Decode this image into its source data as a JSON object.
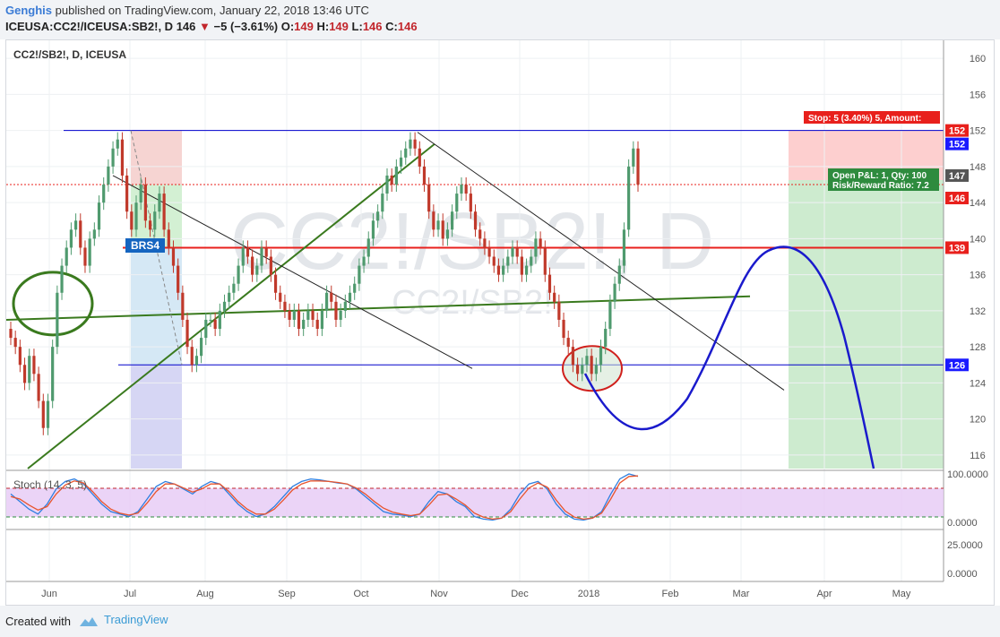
{
  "header": {
    "author": "Genghis",
    "published_text": "published on TradingView.com, January 22, 2018 13:46 UTC",
    "symbol": "ICEUSA:CC2!/ICEUSA:SB2!, D",
    "last": "146",
    "change_arrow": "▼",
    "change": "−5 (−3.61%)",
    "o_label": "O:",
    "o": "149",
    "h_label": "H:",
    "h": "149",
    "l_label": "L:",
    "l": "146",
    "c_label": "C:",
    "c": "146"
  },
  "chart": {
    "legend": "CC2!/SB2!, D, ICEUSA",
    "watermark_main": "CC2!/SB2!, D",
    "watermark_sub": "CC2!/SB2!",
    "stoch_label": "Stoch (14, 3, 5)",
    "brs_label": "BRS4",
    "stop_label": "Stop: 5 (3.40%) 5, Amount:",
    "pnl_line1": "Open P&L: 1, Qty: 100",
    "pnl_line2": "Risk/Reward Ratio: 7.2"
  },
  "footer": {
    "created_with": "Created with",
    "brand": "TradingView"
  },
  "colors": {
    "up": "#4f9a6e",
    "down": "#c0392b",
    "blue": "#1a1aff",
    "darkblue": "#0000cc",
    "green_line": "#3a7a1e",
    "red_line": "#e8201c"
  },
  "chart_data": {
    "type": "candlestick",
    "title": "CC2!/SB2!, D, ICEUSA",
    "x_ticks": [
      "Jun",
      "Jul",
      "Aug",
      "Sep",
      "Oct",
      "Nov",
      "Dec",
      "2018",
      "Feb",
      "Mar",
      "Apr",
      "May"
    ],
    "y_ticks": [
      116,
      120,
      124,
      128,
      132,
      136,
      140,
      144,
      148,
      152,
      156,
      160
    ],
    "ylim": [
      114.5,
      162
    ],
    "price_labels": [
      {
        "value": 152,
        "text": "152",
        "color": "#e8201c"
      },
      {
        "value": 152,
        "text": "152",
        "color": "#1a1aff",
        "offset": 1
      },
      {
        "value": 147,
        "text": "147",
        "color": "#555555"
      },
      {
        "value": 146,
        "text": "146",
        "color": "#e8201c",
        "offset": 1
      },
      {
        "value": 139,
        "text": "139",
        "color": "#e8201c"
      },
      {
        "value": 126,
        "text": "126",
        "color": "#1a1aff"
      }
    ],
    "horizontal_levels": {
      "top": 152,
      "bottom": 126,
      "red": 139,
      "last": 146
    },
    "series_close": [
      129,
      128,
      126,
      124,
      127,
      125,
      122,
      119,
      122,
      128,
      134,
      137,
      139,
      141,
      142,
      139,
      137,
      140,
      141,
      144,
      146,
      148,
      150,
      151,
      147,
      143,
      141,
      144,
      146,
      142,
      141,
      143,
      145,
      141,
      139,
      137,
      134,
      131,
      128,
      126,
      127,
      129,
      131,
      131,
      130,
      132,
      133,
      134,
      135,
      137,
      139,
      138,
      136,
      137,
      139,
      138,
      136,
      134,
      133,
      132,
      131,
      132,
      130,
      131,
      132,
      131,
      130,
      132,
      134,
      133,
      131,
      132,
      133,
      134,
      135,
      137,
      138,
      140,
      142,
      143,
      145,
      147,
      146,
      148,
      149,
      150,
      151,
      150,
      148,
      146,
      143,
      141,
      142,
      140,
      141,
      143,
      145,
      146,
      145,
      143,
      141,
      140,
      139,
      138,
      137,
      136,
      137,
      138,
      139,
      138,
      136,
      137,
      138,
      140,
      139,
      136,
      134,
      133,
      131,
      129,
      128,
      126,
      125,
      126,
      127,
      125,
      126,
      128,
      130,
      133,
      135,
      137,
      141,
      148,
      150,
      146
    ],
    "stoch_ticks": [
      "100.0000",
      "0.0000",
      "25.0000",
      "0.0000"
    ],
    "stoch_k": [
      60,
      45,
      30,
      20,
      40,
      70,
      85,
      90,
      80,
      60,
      40,
      25,
      20,
      15,
      25,
      50,
      75,
      85,
      80,
      70,
      60,
      75,
      85,
      80,
      60,
      40,
      25,
      15,
      20,
      35,
      55,
      75,
      85,
      90,
      88,
      85,
      82,
      80,
      70,
      55,
      40,
      25,
      20,
      18,
      15,
      20,
      45,
      65,
      60,
      45,
      35,
      15,
      10,
      8,
      12,
      30,
      60,
      80,
      85,
      70,
      40,
      20,
      10,
      8,
      12,
      25,
      60,
      90,
      100,
      95
    ],
    "stoch_d": [
      55,
      50,
      38,
      28,
      35,
      60,
      78,
      86,
      82,
      65,
      45,
      30,
      22,
      18,
      22,
      42,
      65,
      80,
      80,
      72,
      64,
      70,
      80,
      80,
      65,
      45,
      30,
      20,
      20,
      30,
      48,
      68,
      80,
      86,
      86,
      85,
      83,
      80,
      72,
      60,
      45,
      32,
      24,
      20,
      17,
      20,
      38,
      58,
      60,
      50,
      38,
      22,
      14,
      10,
      12,
      25,
      50,
      72,
      82,
      74,
      48,
      26,
      14,
      10,
      12,
      22,
      50,
      82,
      95,
      96
    ]
  }
}
